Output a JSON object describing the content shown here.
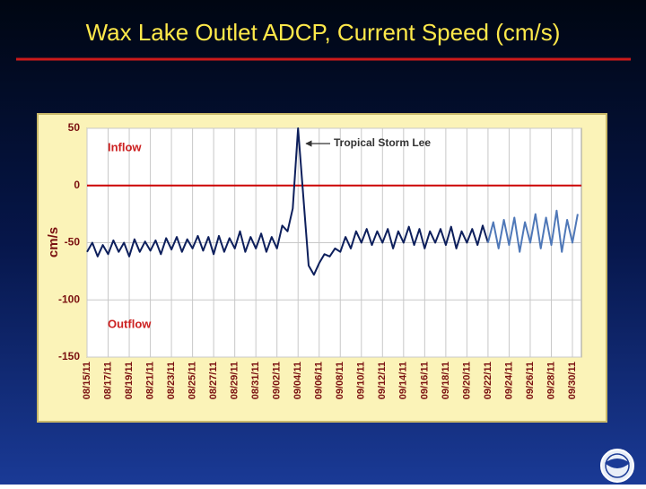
{
  "chart_data": {
    "type": "line",
    "title": "Wax Lake Outlet ADCP, Current Speed (cm/s)",
    "y_label": "cm/s",
    "annotations": {
      "inflow": "Inflow",
      "outflow": "Outflow",
      "storm": "Tropical Storm Lee"
    },
    "reference_line": {
      "value": 0,
      "color": "#cc0000"
    },
    "grid": true,
    "ylim": [
      -150,
      50
    ],
    "yticks": [
      -150,
      -100,
      -50,
      0,
      50
    ],
    "categories": [
      "08/15/11",
      null,
      null,
      null,
      "08/17/11",
      null,
      null,
      null,
      "08/19/11",
      null,
      null,
      null,
      "08/21/11",
      null,
      null,
      null,
      "08/23/11",
      null,
      null,
      null,
      "08/25/11",
      null,
      null,
      null,
      "08/27/11",
      null,
      null,
      null,
      "08/29/11",
      null,
      null,
      null,
      "08/31/11",
      null,
      null,
      null,
      "09/02/11",
      null,
      null,
      null,
      "09/04/11",
      null,
      null,
      null,
      "09/06/11",
      null,
      null,
      null,
      "09/08/11",
      null,
      null,
      null,
      "09/10/11",
      null,
      null,
      null,
      "09/12/11",
      null,
      null,
      null,
      "09/14/11",
      null,
      null,
      null,
      "09/16/11",
      null,
      null,
      null,
      "09/18/11",
      null,
      null,
      null,
      "09/20/11",
      null,
      null,
      null,
      "09/22/11",
      null,
      null,
      null,
      "09/24/11",
      null,
      null,
      null,
      "09/26/11",
      null,
      null,
      null,
      "09/28/11",
      null,
      null,
      null,
      "09/30/11",
      null
    ],
    "series": [
      {
        "color": "#0d1f5c",
        "values": [
          -58,
          -50,
          -62,
          -52,
          -60,
          -48,
          -58,
          -50,
          -62,
          -47,
          -58,
          -49,
          -57,
          -48,
          -60,
          -46,
          -56,
          -45,
          -58,
          -47,
          -55,
          -44,
          -57,
          -45,
          -60,
          -44,
          -58,
          -46,
          -55,
          -40,
          -58,
          -45,
          -55,
          -42,
          -58,
          -45,
          -55,
          -35,
          -40,
          -20,
          50,
          -10,
          -70,
          -78,
          -68,
          -60,
          -62,
          -55,
          -58,
          -45,
          -55,
          -40,
          -50,
          -38,
          -52,
          -40,
          -50,
          -38,
          -55,
          -40,
          -50,
          -36,
          -52,
          -38,
          -55,
          -40,
          -50,
          -38,
          -52,
          -36,
          -55,
          -40,
          -50,
          -38,
          -52,
          -35,
          -50,
          null,
          null,
          null,
          null,
          null,
          null,
          null,
          null,
          null,
          null,
          null,
          null,
          null,
          null,
          null,
          null,
          null
        ]
      },
      {
        "color": "#4f78b8",
        "values": [
          null,
          null,
          null,
          null,
          null,
          null,
          null,
          null,
          null,
          null,
          null,
          null,
          null,
          null,
          null,
          null,
          null,
          null,
          null,
          null,
          null,
          null,
          null,
          null,
          null,
          null,
          null,
          null,
          null,
          null,
          null,
          null,
          null,
          null,
          null,
          null,
          null,
          null,
          null,
          null,
          null,
          null,
          null,
          null,
          null,
          null,
          null,
          null,
          null,
          null,
          null,
          null,
          null,
          null,
          null,
          null,
          null,
          null,
          null,
          null,
          null,
          null,
          null,
          null,
          null,
          null,
          null,
          null,
          null,
          null,
          null,
          null,
          null,
          null,
          null,
          null,
          -50,
          -32,
          -55,
          -30,
          -52,
          -28,
          -58,
          -32,
          -50,
          -25,
          -55,
          -28,
          -52,
          -22,
          -58,
          -30,
          -50,
          -25
        ]
      }
    ]
  }
}
